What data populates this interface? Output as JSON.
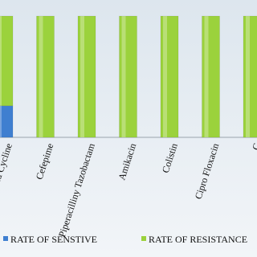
{
  "chart_data": {
    "type": "stacked-bar",
    "categories": [
      "atra Cycline",
      "Cefepime",
      "Piperacilliny Tazobactam",
      "Amikacin",
      "Colistin",
      "Cipro Floxacin",
      "C"
    ],
    "series": [
      {
        "name": "RATE OF SENSTIVE",
        "color": "#3f7fd0",
        "values": [
          26,
          0,
          0,
          0,
          0,
          0,
          0
        ]
      },
      {
        "name": "RATE OF RESISTANCE",
        "color": "#9bd23c",
        "values": [
          74,
          100,
          100,
          100,
          100,
          100,
          100
        ]
      }
    ],
    "ylim": [
      0,
      100
    ],
    "legend": "bottom"
  }
}
